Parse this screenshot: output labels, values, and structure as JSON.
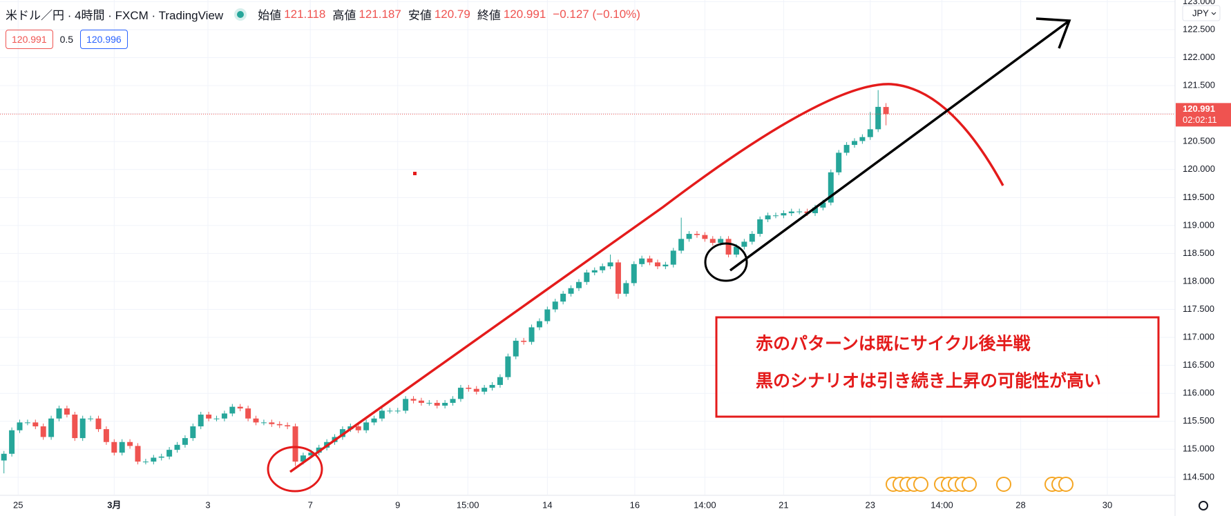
{
  "header": {
    "symbol": "米ドル／円 · 4時間 · FXCM · TradingView",
    "ohlc": [
      {
        "label": "始値",
        "value": 121.118
      },
      {
        "label": "高値",
        "value": 121.187
      },
      {
        "label": "安値",
        "value": 120.79
      },
      {
        "label": "終値",
        "value": 120.991
      }
    ],
    "change": "−0.127 (−0.10%)",
    "quote": {
      "sell": 120.991,
      "spread": 0.5,
      "buy": 120.996
    }
  },
  "chart_data": {
    "type": "candlestick",
    "open": [
      114.8,
      114.92,
      115.34,
      115.48,
      115.48,
      115.41,
      115.22,
      115.55,
      115.73,
      115.62,
      115.2,
      115.55,
      115.55,
      115.36,
      115.13,
      114.94,
      115.13,
      115.06,
      114.78,
      114.78,
      114.85,
      114.87,
      114.99,
      115.08,
      115.2,
      115.41,
      115.62,
      115.55,
      115.55,
      115.64,
      115.76,
      115.73,
      115.55,
      115.48,
      115.48,
      115.45,
      115.43,
      115.41,
      114.78,
      114.89,
      114.94,
      115.03,
      115.13,
      115.22,
      115.36,
      115.41,
      115.34,
      115.48,
      115.55,
      115.69,
      115.69,
      115.69,
      115.9,
      115.87,
      115.83,
      115.83,
      115.78,
      115.83,
      115.9,
      116.1,
      116.08,
      116.03,
      116.1,
      116.15,
      116.29,
      116.66,
      116.94,
      116.92,
      117.18,
      117.29,
      117.5,
      117.64,
      117.78,
      117.88,
      117.99,
      118.16,
      118.2,
      118.27,
      118.34,
      117.78,
      117.97,
      118.31,
      118.41,
      118.34,
      118.27,
      118.3,
      118.55,
      118.76,
      118.85,
      118.83,
      118.76,
      118.69,
      118.76,
      118.48,
      118.62,
      118.71,
      118.85,
      119.11,
      119.18,
      119.18,
      119.22,
      119.25,
      119.25,
      119.22,
      119.32,
      119.41,
      119.95,
      120.3,
      120.44,
      120.51,
      120.58,
      120.72,
      121.118
    ],
    "high": [
      114.97,
      115.39,
      115.53,
      115.53,
      115.53,
      115.46,
      115.6,
      115.78,
      115.78,
      115.67,
      115.6,
      115.6,
      115.6,
      115.41,
      115.18,
      115.18,
      115.18,
      115.11,
      114.83,
      114.9,
      114.92,
      115.04,
      115.13,
      115.25,
      115.46,
      115.67,
      115.67,
      115.6,
      115.69,
      115.81,
      115.81,
      115.78,
      115.6,
      115.53,
      115.53,
      115.5,
      115.48,
      115.46,
      114.94,
      114.99,
      115.08,
      115.18,
      115.27,
      115.41,
      115.46,
      115.46,
      115.53,
      115.6,
      115.74,
      115.74,
      115.74,
      115.95,
      115.95,
      115.92,
      115.88,
      115.88,
      115.88,
      115.95,
      116.15,
      116.15,
      116.13,
      116.15,
      116.2,
      116.34,
      116.71,
      116.99,
      116.99,
      117.23,
      117.34,
      117.55,
      117.69,
      117.83,
      117.93,
      118.04,
      118.21,
      118.25,
      118.32,
      118.48,
      118.39,
      118.02,
      118.36,
      118.46,
      118.46,
      118.39,
      118.35,
      118.6,
      119.14,
      118.9,
      118.9,
      118.88,
      118.81,
      118.81,
      118.81,
      118.67,
      118.76,
      118.9,
      119.16,
      119.23,
      119.23,
      119.27,
      119.3,
      119.3,
      119.3,
      119.37,
      119.46,
      120.0,
      120.35,
      120.49,
      120.56,
      120.63,
      121.03,
      121.42,
      121.187
    ],
    "low": [
      114.57,
      114.87,
      115.29,
      115.43,
      115.36,
      115.17,
      115.17,
      115.5,
      115.57,
      115.15,
      115.15,
      115.5,
      115.31,
      115.08,
      114.89,
      114.89,
      115.01,
      114.73,
      114.73,
      114.73,
      114.8,
      114.82,
      114.94,
      115.03,
      115.15,
      115.36,
      115.5,
      115.5,
      115.5,
      115.59,
      115.68,
      115.5,
      115.43,
      115.43,
      115.4,
      115.38,
      115.36,
      114.7,
      114.73,
      114.84,
      114.89,
      114.98,
      115.08,
      115.17,
      115.31,
      115.29,
      115.29,
      115.43,
      115.5,
      115.64,
      115.64,
      115.64,
      115.82,
      115.78,
      115.78,
      115.73,
      115.73,
      115.78,
      115.85,
      116.03,
      115.98,
      115.98,
      116.05,
      116.1,
      116.24,
      116.61,
      116.87,
      116.87,
      117.13,
      117.24,
      117.45,
      117.59,
      117.73,
      117.83,
      117.94,
      118.11,
      118.15,
      118.22,
      117.69,
      117.73,
      117.92,
      118.26,
      118.29,
      118.22,
      118.22,
      118.25,
      118.5,
      118.71,
      118.78,
      118.71,
      118.64,
      118.64,
      118.43,
      118.43,
      118.57,
      118.66,
      118.8,
      119.06,
      119.13,
      119.13,
      119.17,
      119.2,
      119.17,
      119.17,
      119.27,
      119.36,
      119.9,
      120.25,
      120.39,
      120.46,
      120.53,
      120.67,
      120.79
    ],
    "close": [
      114.92,
      115.34,
      115.48,
      115.48,
      115.41,
      115.22,
      115.55,
      115.73,
      115.62,
      115.2,
      115.55,
      115.55,
      115.36,
      115.13,
      114.94,
      115.13,
      115.06,
      114.78,
      114.78,
      114.85,
      114.87,
      114.99,
      115.08,
      115.2,
      115.41,
      115.62,
      115.55,
      115.55,
      115.64,
      115.76,
      115.73,
      115.55,
      115.48,
      115.48,
      115.45,
      115.43,
      115.41,
      114.78,
      114.89,
      114.94,
      115.03,
      115.13,
      115.22,
      115.36,
      115.41,
      115.34,
      115.48,
      115.55,
      115.69,
      115.69,
      115.69,
      115.9,
      115.87,
      115.83,
      115.83,
      115.78,
      115.83,
      115.9,
      116.1,
      116.08,
      116.03,
      116.1,
      116.15,
      116.29,
      116.66,
      116.94,
      116.92,
      117.18,
      117.29,
      117.5,
      117.64,
      117.78,
      117.88,
      117.99,
      118.16,
      118.2,
      118.27,
      118.34,
      117.78,
      117.97,
      118.31,
      118.41,
      118.34,
      118.27,
      118.3,
      118.55,
      118.76,
      118.85,
      118.83,
      118.76,
      118.69,
      118.76,
      118.48,
      118.62,
      118.71,
      118.85,
      119.11,
      119.18,
      119.18,
      119.22,
      119.25,
      119.25,
      119.22,
      119.32,
      119.41,
      119.95,
      120.3,
      120.44,
      120.51,
      120.58,
      120.72,
      121.12,
      120.991
    ],
    "up_color": "#26a69a",
    "down_color": "#ef5350",
    "ylim": [
      114.19,
      123.03
    ],
    "yticks": [
      {
        "value": 123,
        "label": "123.000"
      },
      {
        "value": 122.5,
        "label": "122.500"
      },
      {
        "value": 122,
        "label": "122.000"
      },
      {
        "value": 121.5,
        "label": "121.500"
      },
      {
        "value": 121,
        "label": "121.000"
      },
      {
        "value": 120.5,
        "label": "120.500"
      },
      {
        "value": 120,
        "label": "120.000"
      },
      {
        "value": 119.5,
        "label": "119.500"
      },
      {
        "value": 119,
        "label": "119.000"
      },
      {
        "value": 118.5,
        "label": "118.500"
      },
      {
        "value": 118,
        "label": "118.000"
      },
      {
        "value": 117.5,
        "label": "117.500"
      },
      {
        "value": 117,
        "label": "117.000"
      },
      {
        "value": 116.5,
        "label": "116.500"
      },
      {
        "value": 116,
        "label": "116.000"
      },
      {
        "value": 115.5,
        "label": "115.500"
      },
      {
        "value": 115,
        "label": "115.000"
      },
      {
        "value": 114.5,
        "label": "114.500"
      }
    ],
    "xlim": [
      -0.5,
      148.7
    ],
    "xticks": [
      {
        "value": 1.8,
        "label": "25"
      },
      {
        "value": 14.0,
        "label": "3月"
      },
      {
        "value": 25.9,
        "label": "3"
      },
      {
        "value": 38.9,
        "label": "7"
      },
      {
        "value": 50.0,
        "label": "9"
      },
      {
        "value": 58.9,
        "label": "15:00"
      },
      {
        "value": 69.0,
        "label": "14"
      },
      {
        "value": 80.1,
        "label": "16"
      },
      {
        "value": 89.0,
        "label": "14:00"
      },
      {
        "value": 99.0,
        "label": "21"
      },
      {
        "value": 110.0,
        "label": "23"
      },
      {
        "value": 119.1,
        "label": "14:00"
      },
      {
        "value": 129.1,
        "label": "28"
      },
      {
        "value": 140.1,
        "label": "30"
      }
    ],
    "grid": true,
    "currency": "JPY",
    "last_price": 120.991,
    "countdown": "02:02:11",
    "annotation": [
      "赤のパターンは既にサイクル後半戦",
      "黒のシナリオは引き続き上昇の可能性が高い"
    ]
  }
}
